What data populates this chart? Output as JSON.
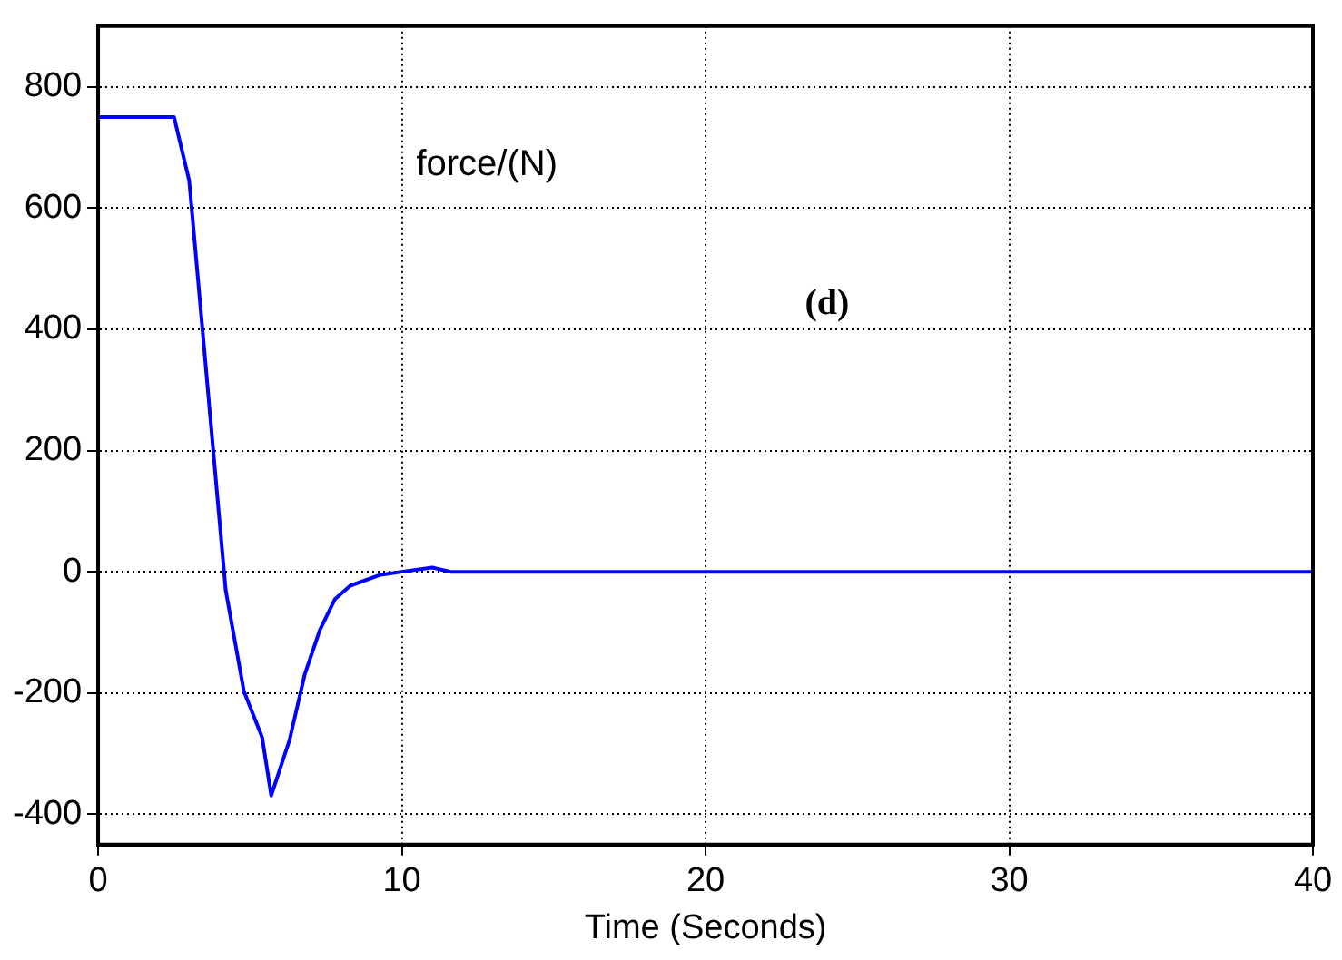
{
  "chart_data": {
    "type": "line",
    "xlabel": "Time (Seconds)",
    "annotations": [
      "force/(N)",
      "(d)"
    ],
    "x": [
      0,
      2.5,
      3,
      4.2,
      4.8,
      5.4,
      5.7,
      6.3,
      6.8,
      7.3,
      7.8,
      8.3,
      9.3,
      10,
      11,
      11.6,
      40
    ],
    "series": [
      {
        "color": "#0000ff",
        "values": [
          750,
          750,
          645,
          -30,
          -197,
          -273,
          -369,
          -278,
          -170,
          -96,
          -45,
          -23,
          -5,
          0,
          7,
          0,
          0
        ]
      }
    ],
    "xlim": [
      0,
      40
    ],
    "xticks": [
      0,
      10,
      20,
      30,
      40
    ],
    "ylim": [
      -450,
      900
    ],
    "yticks": [
      -400,
      -200,
      0,
      200,
      400,
      600,
      800
    ],
    "grid": true,
    "legend": false,
    "marker": "none",
    "line_style": "solid"
  }
}
